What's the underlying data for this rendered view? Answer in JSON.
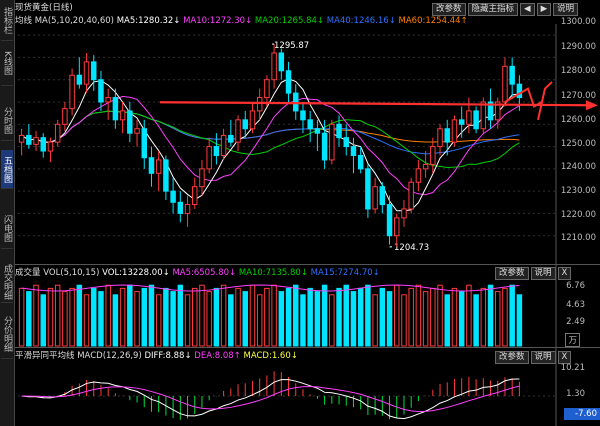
{
  "title": "现货黄金(日线)",
  "sidebar": [
    "指标栏",
    "K线图",
    "分时图",
    "五档图",
    "闪电图",
    "成交明细",
    "分价明细"
  ],
  "main_indicator": {
    "name": "均线",
    "params": "MA(5,10,20,40,60)",
    "ma5": "MA5:1280.32↓",
    "ma10": "MA10:1272.30↓",
    "ma20": "MA20:1265.84↓",
    "ma40": "MA40:1246.16↓",
    "ma60": "MA60:1254.44↑",
    "colors": {
      "ma5": "#ffffff",
      "ma10": "#ff40ff",
      "ma20": "#00d000",
      "ma40": "#2c70ff",
      "ma60": "#ff8000"
    }
  },
  "main_buttons": [
    "改参数",
    "隐藏主指标",
    "◀",
    "▶",
    "说明"
  ],
  "price_axis": [
    "1300.00",
    "1290.00",
    "1280.00",
    "1270.00",
    "1260.00",
    "1250.00",
    "1240.00",
    "1230.00",
    "1220.00",
    "1210.00"
  ],
  "price_annotations": {
    "high": "1295.87",
    "low": "1204.73"
  },
  "vol_panel": {
    "name": "成交量",
    "params": "VOL(5,10,15)",
    "vol": "VOL:13228.00↓",
    "ma5": "MA5:6505.80↓",
    "ma10": "MA10:7135.80↓",
    "ma15": "MA15:7274.70↓",
    "axis": [
      "6.76",
      "4.63",
      "2.49",
      "万"
    ],
    "buttons": [
      "改参数",
      "说明",
      "X"
    ]
  },
  "macd_panel": {
    "name": "平滑异同平均线",
    "params": "MACD(12,26,9)",
    "diff": "DIFF:8.88↓",
    "dea": "DEA:8.08↑",
    "macd": "MACD:1.60↓",
    "axis": [
      "10.21",
      "1.30"
    ],
    "axis_current": "-7.60",
    "buttons": [
      "改参数",
      "说明",
      "X"
    ]
  },
  "chart_data": {
    "type": "candlestick",
    "ylim": [
      1200,
      1305
    ],
    "price_levels": [
      1300,
      1290,
      1280,
      1270,
      1260,
      1250,
      1240,
      1230,
      1220,
      1210
    ],
    "candles_ohlc": [
      [
        1252,
        1258,
        1246,
        1255
      ],
      [
        1255,
        1260,
        1249,
        1251
      ],
      [
        1251,
        1257,
        1248,
        1254
      ],
      [
        1254,
        1256,
        1245,
        1248
      ],
      [
        1248,
        1254,
        1243,
        1252
      ],
      [
        1252,
        1262,
        1250,
        1260
      ],
      [
        1260,
        1270,
        1257,
        1267
      ],
      [
        1267,
        1285,
        1264,
        1282
      ],
      [
        1282,
        1290,
        1276,
        1278
      ],
      [
        1278,
        1292,
        1274,
        1288
      ],
      [
        1288,
        1291,
        1275,
        1280
      ],
      [
        1280,
        1284,
        1266,
        1270
      ],
      [
        1270,
        1276,
        1262,
        1272
      ],
      [
        1272,
        1276,
        1258,
        1262
      ],
      [
        1262,
        1270,
        1256,
        1266
      ],
      [
        1266,
        1270,
        1252,
        1256
      ],
      [
        1256,
        1262,
        1250,
        1258
      ],
      [
        1258,
        1262,
        1240,
        1245
      ],
      [
        1245,
        1250,
        1232,
        1238
      ],
      [
        1238,
        1248,
        1230,
        1244
      ],
      [
        1244,
        1246,
        1226,
        1230
      ],
      [
        1230,
        1236,
        1220,
        1225
      ],
      [
        1225,
        1230,
        1216,
        1220
      ],
      [
        1220,
        1228,
        1214,
        1224
      ],
      [
        1224,
        1236,
        1222,
        1232
      ],
      [
        1232,
        1244,
        1228,
        1240
      ],
      [
        1240,
        1254,
        1238,
        1250
      ],
      [
        1250,
        1256,
        1242,
        1246
      ],
      [
        1246,
        1258,
        1244,
        1255
      ],
      [
        1255,
        1262,
        1250,
        1252
      ],
      [
        1252,
        1264,
        1248,
        1262
      ],
      [
        1262,
        1266,
        1254,
        1258
      ],
      [
        1258,
        1270,
        1256,
        1266
      ],
      [
        1266,
        1276,
        1262,
        1272
      ],
      [
        1272,
        1282,
        1268,
        1280
      ],
      [
        1280,
        1296,
        1276,
        1292
      ],
      [
        1292,
        1294,
        1280,
        1284
      ],
      [
        1284,
        1288,
        1270,
        1274
      ],
      [
        1274,
        1278,
        1262,
        1266
      ],
      [
        1266,
        1270,
        1256,
        1262
      ],
      [
        1262,
        1266,
        1252,
        1258
      ],
      [
        1258,
        1262,
        1248,
        1256
      ],
      [
        1256,
        1262,
        1240,
        1244
      ],
      [
        1244,
        1262,
        1242,
        1260
      ],
      [
        1260,
        1264,
        1250,
        1254
      ],
      [
        1254,
        1260,
        1246,
        1250
      ],
      [
        1250,
        1254,
        1238,
        1246
      ],
      [
        1246,
        1250,
        1238,
        1240
      ],
      [
        1240,
        1242,
        1218,
        1222
      ],
      [
        1222,
        1236,
        1220,
        1232
      ],
      [
        1232,
        1234,
        1220,
        1224
      ],
      [
        1224,
        1228,
        1206,
        1210
      ],
      [
        1210,
        1220,
        1205,
        1218
      ],
      [
        1218,
        1226,
        1214,
        1222
      ],
      [
        1222,
        1236,
        1220,
        1234
      ],
      [
        1234,
        1244,
        1230,
        1240
      ],
      [
        1240,
        1248,
        1236,
        1242
      ],
      [
        1242,
        1254,
        1238,
        1250
      ],
      [
        1250,
        1260,
        1246,
        1258
      ],
      [
        1258,
        1262,
        1246,
        1252
      ],
      [
        1252,
        1264,
        1250,
        1262
      ],
      [
        1262,
        1268,
        1254,
        1260
      ],
      [
        1260,
        1272,
        1256,
        1266
      ],
      [
        1266,
        1268,
        1256,
        1258
      ],
      [
        1258,
        1272,
        1256,
        1270
      ],
      [
        1270,
        1276,
        1258,
        1262
      ],
      [
        1262,
        1272,
        1258,
        1270
      ],
      [
        1270,
        1290,
        1268,
        1286
      ],
      [
        1286,
        1290,
        1272,
        1278
      ],
      [
        1278,
        1282,
        1266,
        1272
      ]
    ],
    "annotation": {
      "horizontal_line": 1269,
      "color": "#ff3030"
    }
  }
}
